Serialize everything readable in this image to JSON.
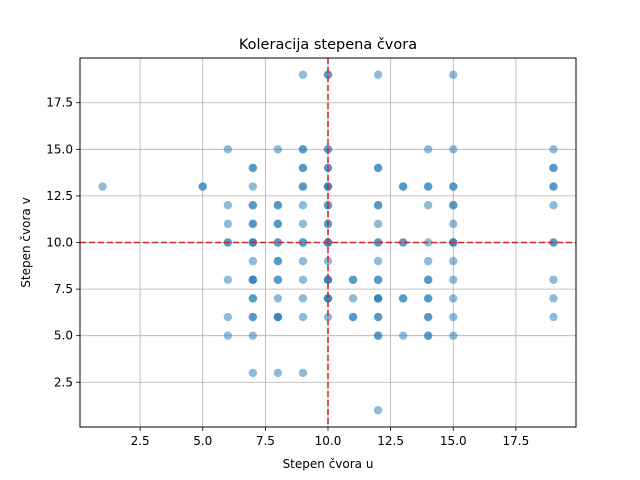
{
  "chart_data": {
    "type": "scatter",
    "title": "Koleracija stepena čvora",
    "xlabel": "Stepen čvora u",
    "ylabel": "Stepen čvora v",
    "xlim": [
      0.1,
      19.9
    ],
    "ylim": [
      0.1,
      19.9
    ],
    "xticks": [
      2.5,
      5.0,
      7.5,
      10.0,
      12.5,
      15.0,
      17.5
    ],
    "yticks": [
      2.5,
      5.0,
      7.5,
      10.0,
      12.5,
      15.0,
      17.5
    ],
    "xtick_labels": [
      "2.5",
      "5.0",
      "7.5",
      "10.0",
      "12.5",
      "15.0",
      "17.5"
    ],
    "ytick_labels": [
      "2.5",
      "5.0",
      "7.5",
      "10.0",
      "12.5",
      "15.0",
      "17.5"
    ],
    "grid": true,
    "point_color": "#1f77b4",
    "point_alpha": 0.5,
    "reference_lines": [
      {
        "orientation": "vertical",
        "value": 10,
        "color": "#d62728",
        "style": "dashed"
      },
      {
        "orientation": "horizontal",
        "value": 10,
        "color": "#d62728",
        "style": "dashed"
      }
    ],
    "points": [
      [
        1,
        13
      ],
      [
        5,
        13
      ],
      [
        5,
        13
      ],
      [
        6,
        15
      ],
      [
        6,
        12
      ],
      [
        6,
        11
      ],
      [
        6,
        10
      ],
      [
        6,
        10
      ],
      [
        6,
        8
      ],
      [
        6,
        6
      ],
      [
        6,
        5
      ],
      [
        7,
        14
      ],
      [
        7,
        14
      ],
      [
        7,
        13
      ],
      [
        7,
        12
      ],
      [
        7,
        12
      ],
      [
        7,
        11
      ],
      [
        7,
        11
      ],
      [
        7,
        10
      ],
      [
        7,
        10
      ],
      [
        7,
        10
      ],
      [
        7,
        9
      ],
      [
        7,
        8
      ],
      [
        7,
        8
      ],
      [
        7,
        8
      ],
      [
        7,
        7
      ],
      [
        7,
        7
      ],
      [
        7,
        6
      ],
      [
        7,
        6
      ],
      [
        7,
        5
      ],
      [
        7,
        3
      ],
      [
        8,
        15
      ],
      [
        8,
        12
      ],
      [
        8,
        12
      ],
      [
        8,
        11
      ],
      [
        8,
        11
      ],
      [
        8,
        10
      ],
      [
        8,
        10
      ],
      [
        8,
        9
      ],
      [
        8,
        9
      ],
      [
        8,
        8
      ],
      [
        8,
        8
      ],
      [
        8,
        7
      ],
      [
        8,
        6
      ],
      [
        8,
        6
      ],
      [
        8,
        6
      ],
      [
        8,
        3
      ],
      [
        9,
        19
      ],
      [
        9,
        15
      ],
      [
        9,
        15
      ],
      [
        9,
        14
      ],
      [
        9,
        14
      ],
      [
        9,
        13
      ],
      [
        9,
        13
      ],
      [
        9,
        12
      ],
      [
        9,
        11
      ],
      [
        9,
        10
      ],
      [
        9,
        10
      ],
      [
        9,
        9
      ],
      [
        9,
        8
      ],
      [
        9,
        7
      ],
      [
        9,
        6
      ],
      [
        9,
        3
      ],
      [
        10,
        19
      ],
      [
        10,
        19
      ],
      [
        10,
        15
      ],
      [
        10,
        15
      ],
      [
        10,
        14
      ],
      [
        10,
        14
      ],
      [
        10,
        13
      ],
      [
        10,
        13
      ],
      [
        10,
        13
      ],
      [
        10,
        12
      ],
      [
        10,
        12
      ],
      [
        10,
        11
      ],
      [
        10,
        11
      ],
      [
        10,
        10
      ],
      [
        10,
        10
      ],
      [
        10,
        10
      ],
      [
        10,
        9
      ],
      [
        10,
        8
      ],
      [
        10,
        8
      ],
      [
        10,
        8
      ],
      [
        10,
        7
      ],
      [
        10,
        7
      ],
      [
        10,
        7
      ],
      [
        10,
        6
      ],
      [
        11,
        8
      ],
      [
        11,
        8
      ],
      [
        11,
        7
      ],
      [
        11,
        6
      ],
      [
        11,
        6
      ],
      [
        12,
        19
      ],
      [
        12,
        14
      ],
      [
        12,
        14
      ],
      [
        12,
        12
      ],
      [
        12,
        12
      ],
      [
        12,
        11
      ],
      [
        12,
        10
      ],
      [
        12,
        10
      ],
      [
        12,
        9
      ],
      [
        12,
        8
      ],
      [
        12,
        8
      ],
      [
        12,
        7
      ],
      [
        12,
        7
      ],
      [
        12,
        7
      ],
      [
        12,
        6
      ],
      [
        12,
        6
      ],
      [
        12,
        5
      ],
      [
        12,
        5
      ],
      [
        12,
        1
      ],
      [
        13,
        13
      ],
      [
        13,
        13
      ],
      [
        13,
        10
      ],
      [
        13,
        10
      ],
      [
        13,
        7
      ],
      [
        13,
        7
      ],
      [
        13,
        5
      ],
      [
        14,
        15
      ],
      [
        14,
        13
      ],
      [
        14,
        13
      ],
      [
        14,
        12
      ],
      [
        14,
        10
      ],
      [
        14,
        9
      ],
      [
        14,
        8
      ],
      [
        14,
        8
      ],
      [
        14,
        7
      ],
      [
        14,
        7
      ],
      [
        14,
        6
      ],
      [
        14,
        6
      ],
      [
        14,
        5
      ],
      [
        14,
        5
      ],
      [
        15,
        19
      ],
      [
        15,
        15
      ],
      [
        15,
        13
      ],
      [
        15,
        13
      ],
      [
        15,
        12
      ],
      [
        15,
        12
      ],
      [
        15,
        11
      ],
      [
        15,
        10
      ],
      [
        15,
        10
      ],
      [
        15,
        10
      ],
      [
        15,
        9
      ],
      [
        15,
        8
      ],
      [
        15,
        7
      ],
      [
        15,
        6
      ],
      [
        15,
        5
      ],
      [
        19,
        15
      ],
      [
        19,
        14
      ],
      [
        19,
        14
      ],
      [
        19,
        13
      ],
      [
        19,
        13
      ],
      [
        19,
        12
      ],
      [
        19,
        10
      ],
      [
        19,
        10
      ],
      [
        19,
        8
      ],
      [
        19,
        7
      ],
      [
        19,
        6
      ]
    ]
  }
}
